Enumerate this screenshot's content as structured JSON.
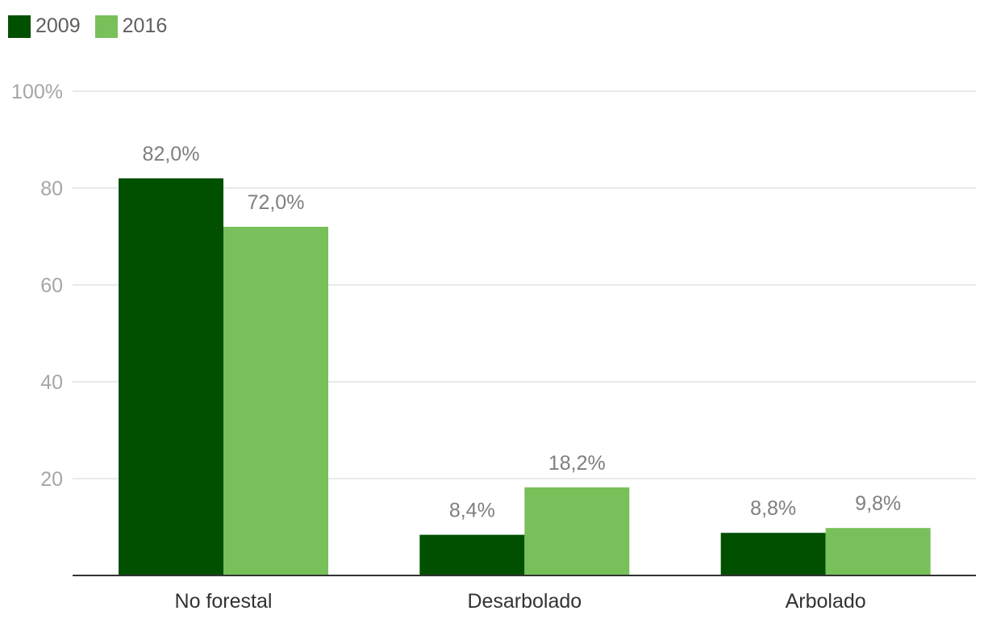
{
  "chart_data": {
    "type": "bar",
    "title": "",
    "xlabel": "",
    "ylabel": "",
    "ylim": [
      0,
      100
    ],
    "yticks": [
      20,
      40,
      60,
      80,
      100
    ],
    "ytick_labels": [
      "20",
      "40",
      "60",
      "80",
      "100%"
    ],
    "grid": true,
    "legend_position": "top-left",
    "categories": [
      "No forestal",
      "Desarbolado",
      "Arbolado"
    ],
    "series": [
      {
        "name": "2009",
        "color": "#005000",
        "values": [
          82.0,
          8.4,
          8.8
        ],
        "labels": [
          "82,0%",
          "8,4%",
          "8,8%"
        ]
      },
      {
        "name": "2016",
        "color": "#78c05a",
        "values": [
          72.0,
          18.2,
          9.8
        ],
        "labels": [
          "72,0%",
          "18,2%",
          "9,8%"
        ]
      }
    ]
  }
}
